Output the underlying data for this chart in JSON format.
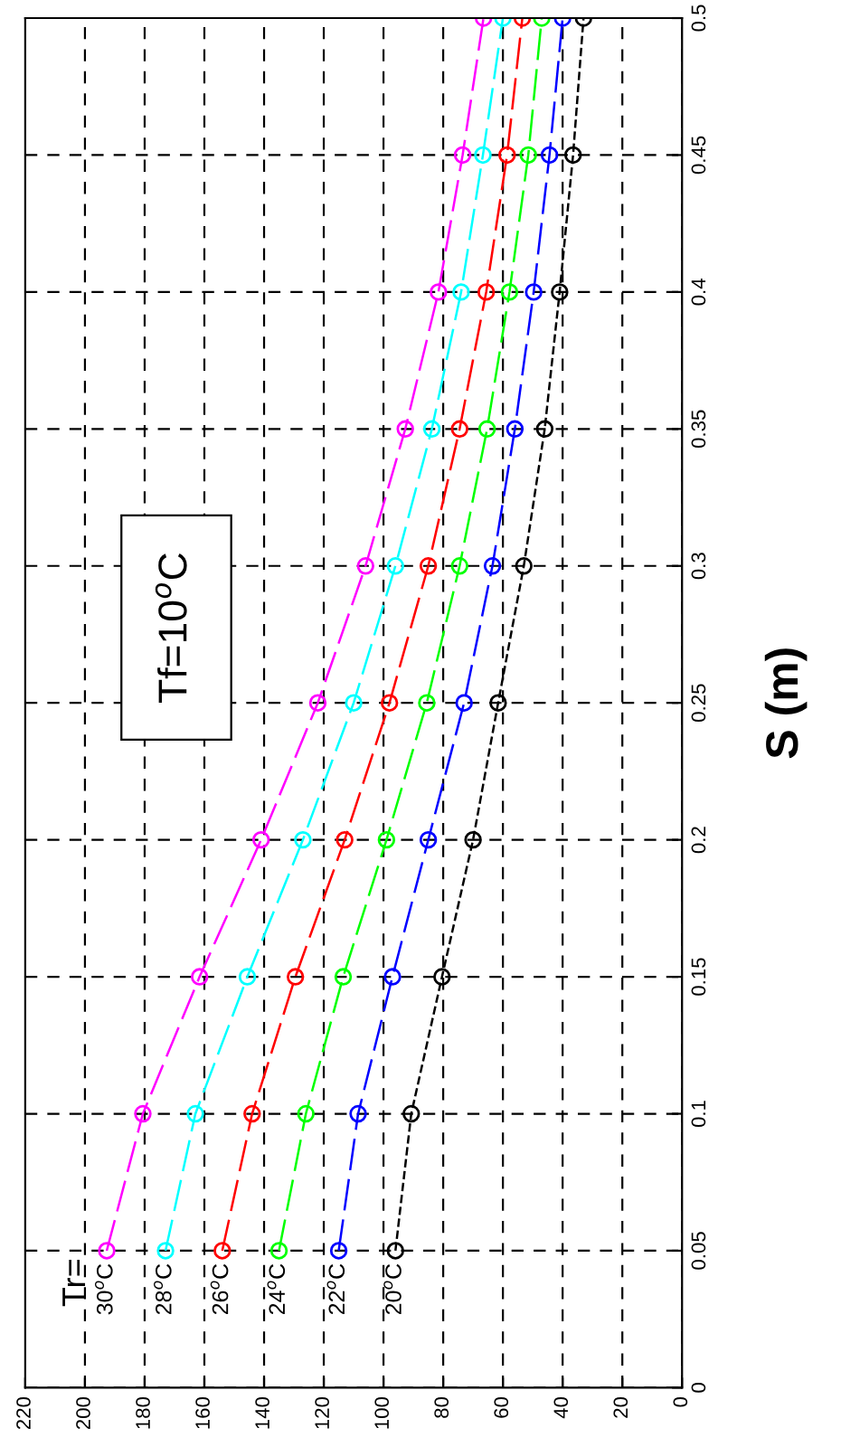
{
  "chart_data": {
    "type": "line",
    "ylabel": "S (m)",
    "series": [
      {
        "name": "30$^{o}$C",
        "color": "#ff00ff",
        "x": [
          192.7,
          180.6,
          161.6,
          141,
          122,
          106,
          92.7,
          81.6,
          73.5,
          66.5
        ],
        "values": [
          0.05,
          0.1,
          0.15,
          0.2,
          0.25,
          0.3,
          0.35,
          0.4,
          0.45,
          0.5
        ]
      },
      {
        "name": "28$^{o}$C",
        "color": "#00ffff",
        "x": [
          173,
          163,
          145.6,
          127,
          110,
          96,
          83.8,
          74,
          66.7,
          60
        ],
        "values": [
          0.05,
          0.1,
          0.15,
          0.2,
          0.25,
          0.3,
          0.35,
          0.4,
          0.45,
          0.5
        ]
      },
      {
        "name": "26$^{o}$C",
        "color": "#ff0000",
        "x": [
          154,
          144,
          129.5,
          113,
          98,
          85,
          74.5,
          65.6,
          58.6,
          53.5
        ],
        "values": [
          0.05,
          0.1,
          0.15,
          0.2,
          0.25,
          0.3,
          0.35,
          0.4,
          0.45,
          0.5
        ]
      },
      {
        "name": "24$^{o}$C",
        "color": "#00ff00",
        "x": [
          135,
          126,
          113.5,
          99,
          85.5,
          74.5,
          65.3,
          57.8,
          51.5,
          47
        ],
        "values": [
          0.05,
          0.1,
          0.15,
          0.2,
          0.25,
          0.3,
          0.35,
          0.4,
          0.45,
          0.5
        ]
      },
      {
        "name": "22$^{o}$C",
        "color": "#0000ff",
        "x": [
          115,
          108.5,
          97,
          85,
          73,
          63.5,
          56,
          49.7,
          44.4,
          40
        ],
        "values": [
          0.05,
          0.1,
          0.15,
          0.2,
          0.25,
          0.3,
          0.35,
          0.4,
          0.45,
          0.5
        ]
      },
      {
        "name": "20$^{o}$C",
        "color": "#000000",
        "x": [
          96,
          90.7,
          80.4,
          70,
          61.6,
          53,
          46,
          41,
          36.5,
          33
        ],
        "values": [
          0.05,
          0.1,
          0.15,
          0.2,
          0.25,
          0.3,
          0.35,
          0.4,
          0.45,
          0.5
        ]
      }
    ],
    "annotations": [
      "Tr=",
      "Tf=10$^{o}$C"
    ],
    "xlim": [
      220,
      0
    ],
    "xticks": [
      0,
      20,
      40,
      60,
      80,
      100,
      120,
      140,
      160,
      180,
      200,
      220
    ],
    "ylim": [
      0,
      0.5
    ],
    "yticks": [
      0,
      0.05,
      0.1,
      0.15,
      0.2,
      0.25,
      0.3,
      0.35,
      0.4,
      0.45,
      0.5
    ],
    "grid": true,
    "legend": false,
    "marker": "circle",
    "line_style": "dashed"
  }
}
